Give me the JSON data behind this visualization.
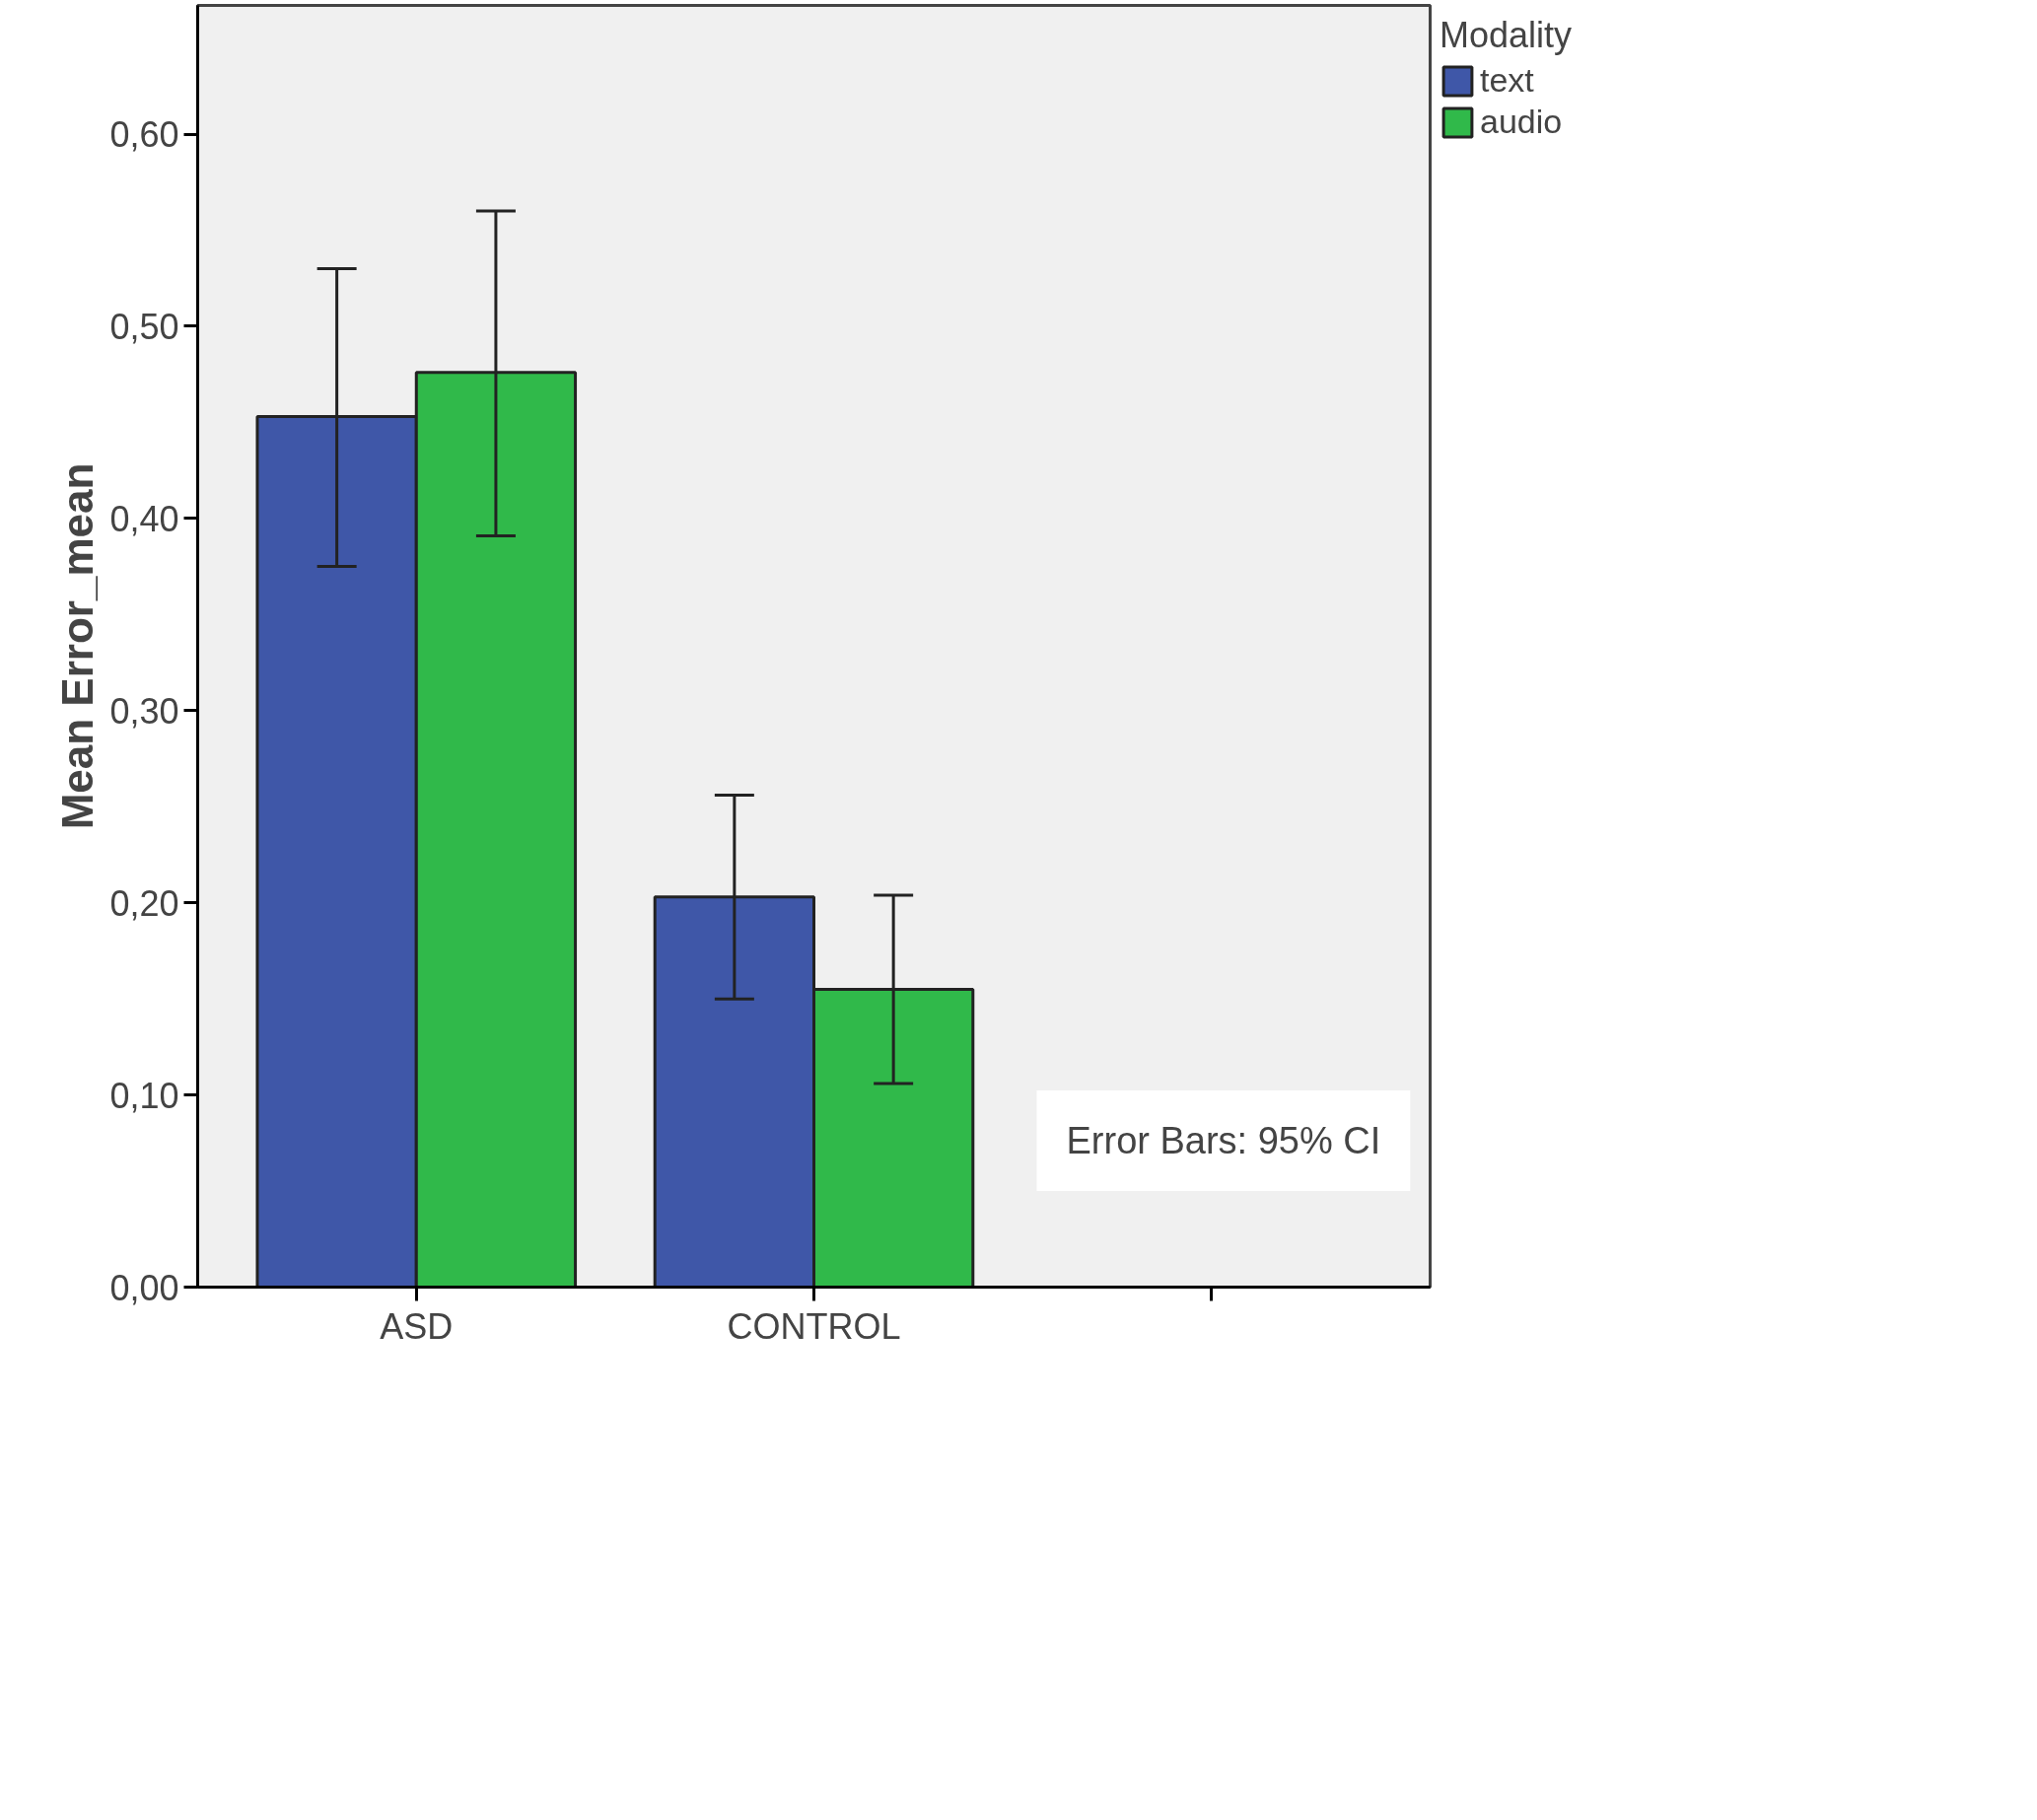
{
  "chart_data": {
    "type": "bar",
    "ylabel": "Mean Error_mean",
    "legend_title": "Modality",
    "categories": [
      "ASD",
      "CONTROL",
      null
    ],
    "series": [
      {
        "name": "text",
        "color": "#3f57a8",
        "values": [
          0.453,
          0.203,
          0
        ],
        "errors": [
          [
            0.375,
            0.53
          ],
          [
            0.15,
            0.256
          ],
          null
        ]
      },
      {
        "name": "audio",
        "color": "#30b94a",
        "values": [
          0.476,
          0.155,
          0
        ],
        "errors": [
          [
            0.391,
            0.56
          ],
          [
            0.106,
            0.204
          ],
          null
        ]
      }
    ],
    "ylim": [
      0,
      0.667
    ],
    "yticks": [
      {
        "value": 0,
        "label": "0,00"
      },
      {
        "value": 0.1,
        "label": "0,10"
      },
      {
        "value": 0.2,
        "label": "0,20"
      },
      {
        "value": 0.3,
        "label": "0,30"
      },
      {
        "value": 0.4,
        "label": "0,40"
      },
      {
        "value": 0.5,
        "label": "0,50"
      },
      {
        "value": 0.6,
        "label": "0,60"
      }
    ],
    "grid": false,
    "legend": "top right",
    "annotations": [
      "Error Bars: 95% CI"
    ]
  }
}
